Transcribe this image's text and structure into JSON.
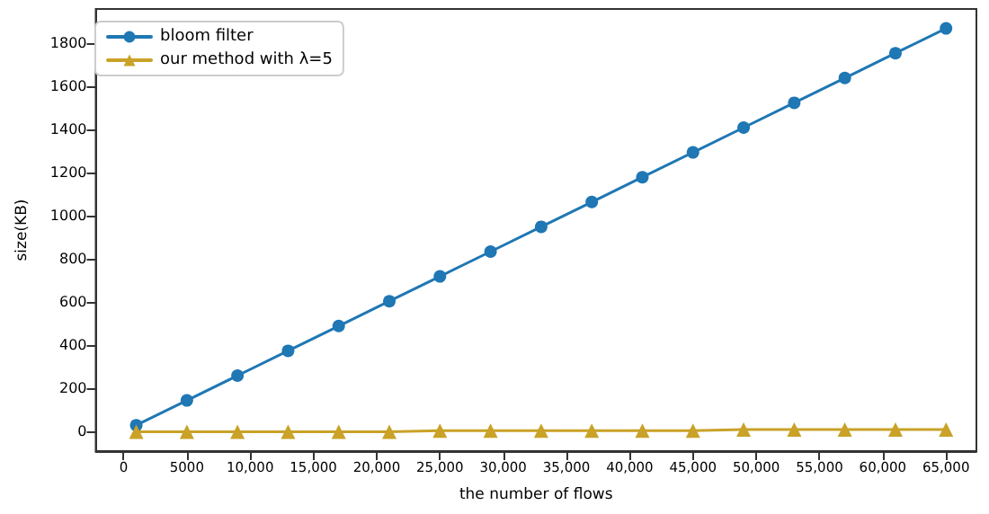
{
  "chart_data": {
    "type": "line",
    "xlabel": "the number of flows",
    "ylabel": "size(KB)",
    "x": [
      1000,
      5000,
      9000,
      13000,
      17000,
      21000,
      25000,
      29000,
      33000,
      37000,
      41000,
      45000,
      49000,
      53000,
      57000,
      61000,
      65000
    ],
    "series": [
      {
        "name": "bloom filter",
        "color": "#1f77b4",
        "marker": "circle",
        "values": [
          30,
          145,
          260,
          375,
          490,
          605,
          720,
          835,
          950,
          1065,
          1180,
          1295,
          1410,
          1525,
          1640,
          1755,
          1870
        ]
      },
      {
        "name": "our method with λ=5",
        "color": "#c9a227",
        "marker": "triangle",
        "values": [
          0,
          0,
          0,
          0,
          0,
          0,
          5,
          5,
          5,
          5,
          5,
          5,
          10,
          10,
          10,
          10,
          10
        ]
      }
    ],
    "xlim": [
      -2200,
      67400
    ],
    "xticks": [
      0,
      5000,
      {
        "value": 10000,
        "label": "10,000"
      },
      {
        "value": 15000,
        "label": "15,000"
      },
      {
        "value": 20000,
        "label": "20,000"
      },
      {
        "value": 25000,
        "label": "25,000"
      },
      {
        "value": 30000,
        "label": "30,000"
      },
      {
        "value": 35000,
        "label": "35,000"
      },
      {
        "value": 40000,
        "label": "40,000"
      },
      {
        "value": 45000,
        "label": "45,000"
      },
      {
        "value": 50000,
        "label": "50,000"
      },
      {
        "value": 55000,
        "label": "55,000"
      },
      {
        "value": 60000,
        "label": "60,000"
      },
      {
        "value": 65000,
        "label": "65,000"
      }
    ],
    "ylim": [
      -90,
      1960
    ],
    "yticks": [
      0,
      200,
      400,
      600,
      800,
      1000,
      1200,
      1400,
      1600,
      1800
    ],
    "grid": false,
    "legend": "top left",
    "line_style": "solid"
  }
}
